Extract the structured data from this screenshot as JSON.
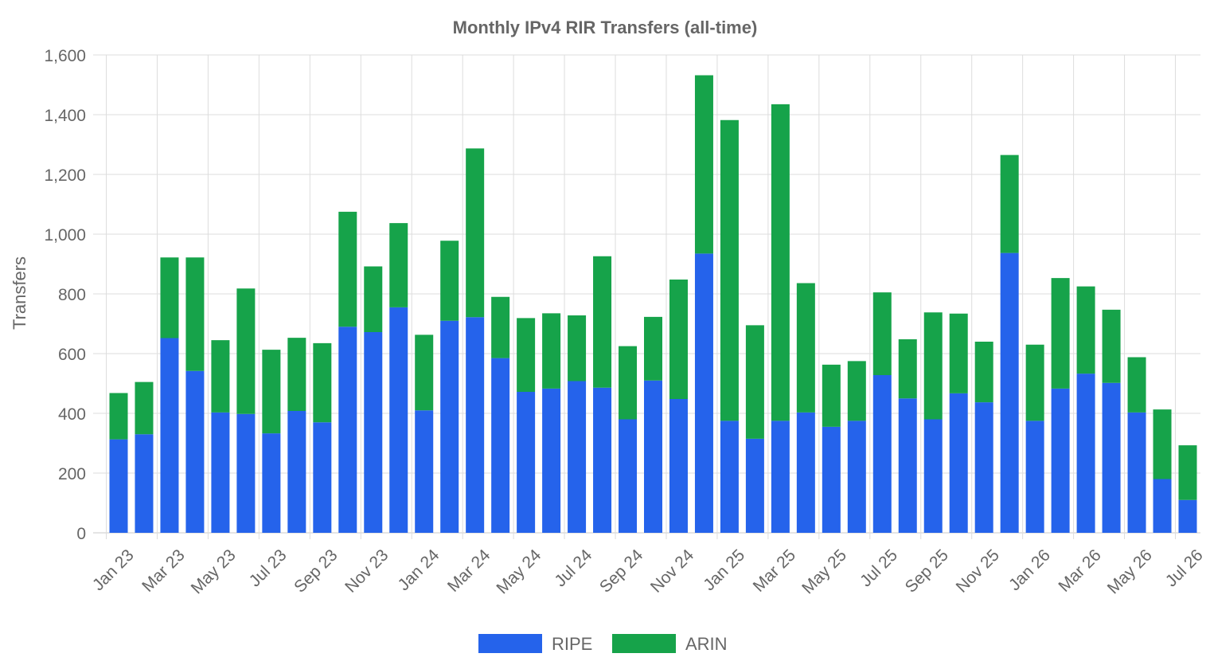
{
  "chart_data": {
    "type": "bar",
    "stacked": true,
    "title": "Monthly IPv4 RIR Transfers (all-time)",
    "xlabel": "",
    "ylabel": "Transfers",
    "ylim": [
      0,
      1600
    ],
    "yticks": [
      0,
      200,
      400,
      600,
      800,
      1000,
      1200,
      1400,
      1600
    ],
    "ytick_labels": [
      "0",
      "200",
      "400",
      "600",
      "800",
      "1,000",
      "1,200",
      "1,400",
      "1,600"
    ],
    "grid": true,
    "legend_position": "bottom-center",
    "categories": [
      "Jan 23",
      "Feb 23",
      "Mar 23",
      "Apr 23",
      "May 23",
      "Jun 23",
      "Jul 23",
      "Aug 23",
      "Sep 23",
      "Oct 23",
      "Nov 23",
      "Dec 23",
      "Jan 24",
      "Feb 24",
      "Mar 24",
      "Apr 24",
      "May 24",
      "Jun 24",
      "Jul 24",
      "Aug 24",
      "Sep 24",
      "Oct 24",
      "Nov 24",
      "Dec 24",
      "Jan 25",
      "Feb 25",
      "Mar 25",
      "Apr 25",
      "May 25",
      "Jun 25",
      "Jul 25",
      "Aug 25",
      "Sep 25",
      "Oct 25",
      "Nov 25",
      "Dec 25",
      "Jan 26",
      "Feb 26",
      "Mar 26",
      "Apr 26",
      "May 26",
      "Jun 26",
      "Jul 26"
    ],
    "x_tick_labels": [
      "Jan 23",
      "Mar 23",
      "May 23",
      "Jul 23",
      "Sep 23",
      "Nov 23",
      "Jan 24",
      "Mar 24",
      "May 24",
      "Jul 24",
      "Sep 24",
      "Nov 24",
      "Jan 25",
      "Mar 25",
      "May 25",
      "Jul 25",
      "Sep 25",
      "Nov 25",
      "Jan 26",
      "Mar 26",
      "May 26",
      "Jul 26"
    ],
    "series": [
      {
        "name": "RIPE",
        "color": "#2563eb",
        "values": [
          313,
          330,
          652,
          542,
          403,
          398,
          333,
          408,
          370,
          690,
          672,
          755,
          410,
          710,
          722,
          585,
          472,
          483,
          508,
          486,
          380,
          510,
          448,
          935,
          375,
          315,
          375,
          403,
          355,
          375,
          528,
          450,
          380,
          467,
          437,
          937,
          375,
          483,
          533,
          502,
          403,
          180,
          110
        ]
      },
      {
        "name": "ARIN",
        "color": "#16a34a",
        "values": [
          155,
          175,
          270,
          380,
          242,
          420,
          280,
          245,
          265,
          385,
          220,
          282,
          253,
          268,
          565,
          205,
          247,
          252,
          220,
          440,
          245,
          213,
          400,
          597,
          1007,
          380,
          1060,
          433,
          208,
          200,
          277,
          198,
          358,
          267,
          203,
          328,
          255,
          370,
          292,
          245,
          185,
          233,
          183
        ]
      }
    ]
  }
}
